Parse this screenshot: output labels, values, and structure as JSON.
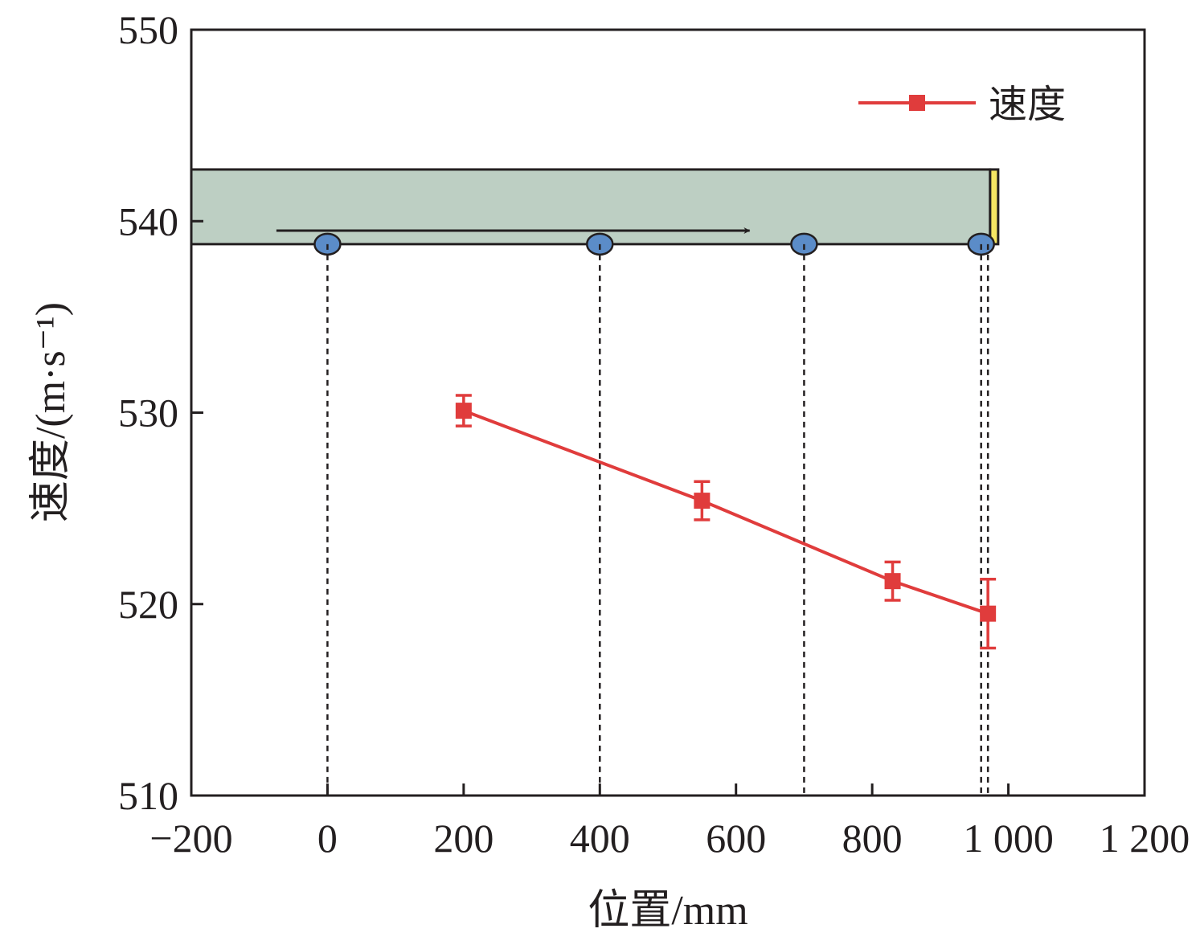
{
  "chart_data": {
    "type": "line",
    "xlabel": "位置/mm",
    "ylabel": "速度/(m·s⁻¹)",
    "xlim": [
      -200,
      1200
    ],
    "ylim": [
      510,
      550
    ],
    "x_ticks": [
      -200,
      0,
      200,
      400,
      600,
      800,
      1000,
      1200
    ],
    "x_tick_labels": [
      "−200",
      "0",
      "200",
      "400",
      "600",
      "800",
      "1 000",
      "1 200"
    ],
    "y_ticks": [
      510,
      520,
      530,
      540,
      550
    ],
    "y_tick_labels": [
      "510",
      "520",
      "530",
      "540",
      "550"
    ],
    "series": [
      {
        "name": "速度",
        "color": "#e03c3c",
        "marker": "square",
        "x": [
          200,
          550,
          830,
          970
        ],
        "y": [
          530.1,
          525.4,
          521.2,
          519.5
        ],
        "error": [
          0.8,
          1.0,
          1.0,
          1.8
        ]
      }
    ],
    "legend_position": "top-right",
    "schematic": {
      "bar_y_range": [
        538.8,
        542.7
      ],
      "bar_x_range": [
        -200,
        985
      ],
      "bar_color": "#bdcfc3",
      "end_cap_color": "#f5e663",
      "sensor_x": [
        0,
        400,
        700,
        960
      ],
      "sensor_color": "#5b8cc8",
      "arrow": "right",
      "dashed_line_x": [
        0,
        400,
        700,
        960,
        970
      ]
    },
    "grid": false
  }
}
